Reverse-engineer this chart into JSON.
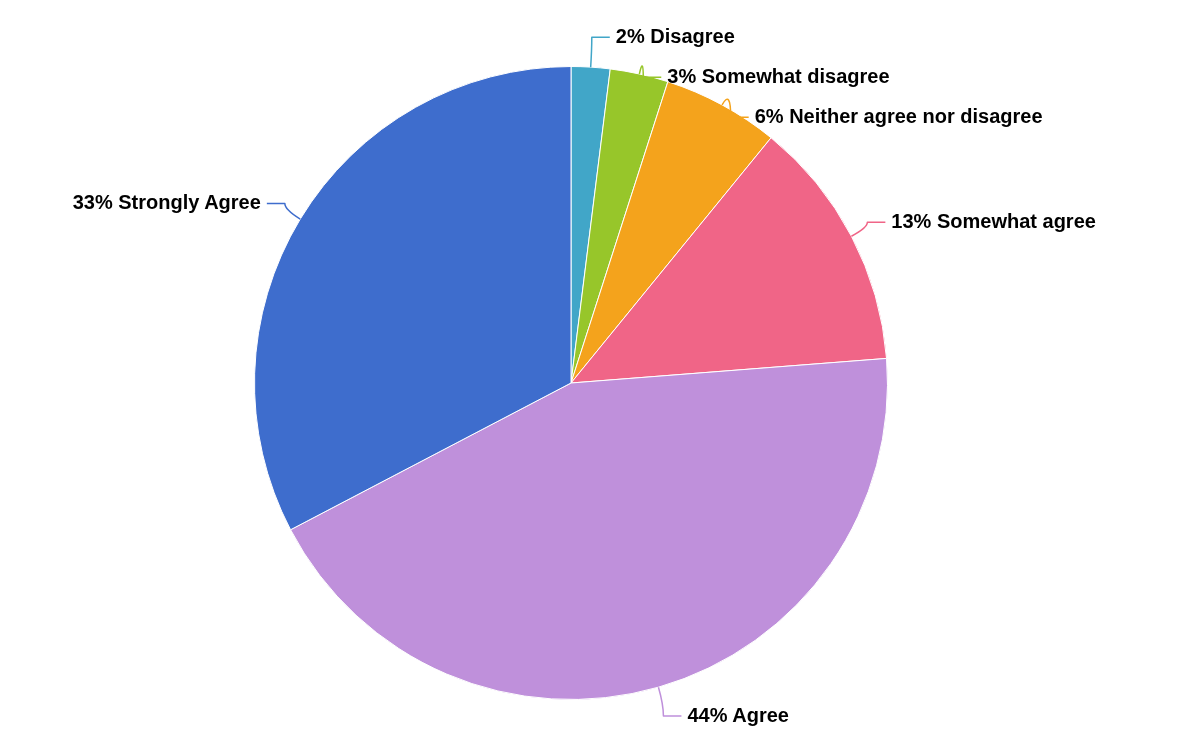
{
  "chart_data": {
    "type": "pie",
    "categories": [
      "Disagree",
      "Somewhat disagree",
      "Neither agree nor disagree",
      "Somewhat agree",
      "Agree",
      "Strongly Agree"
    ],
    "values": [
      2,
      3,
      6,
      13,
      44,
      33
    ],
    "value_labels": [
      "2%",
      "3%",
      "6%",
      "13%",
      "44%",
      "33%"
    ],
    "colors": [
      "#41a6c8",
      "#97c62a",
      "#f4a31c",
      "#f06587",
      "#bf90db",
      "#3e6dcd"
    ],
    "legend": false
  }
}
